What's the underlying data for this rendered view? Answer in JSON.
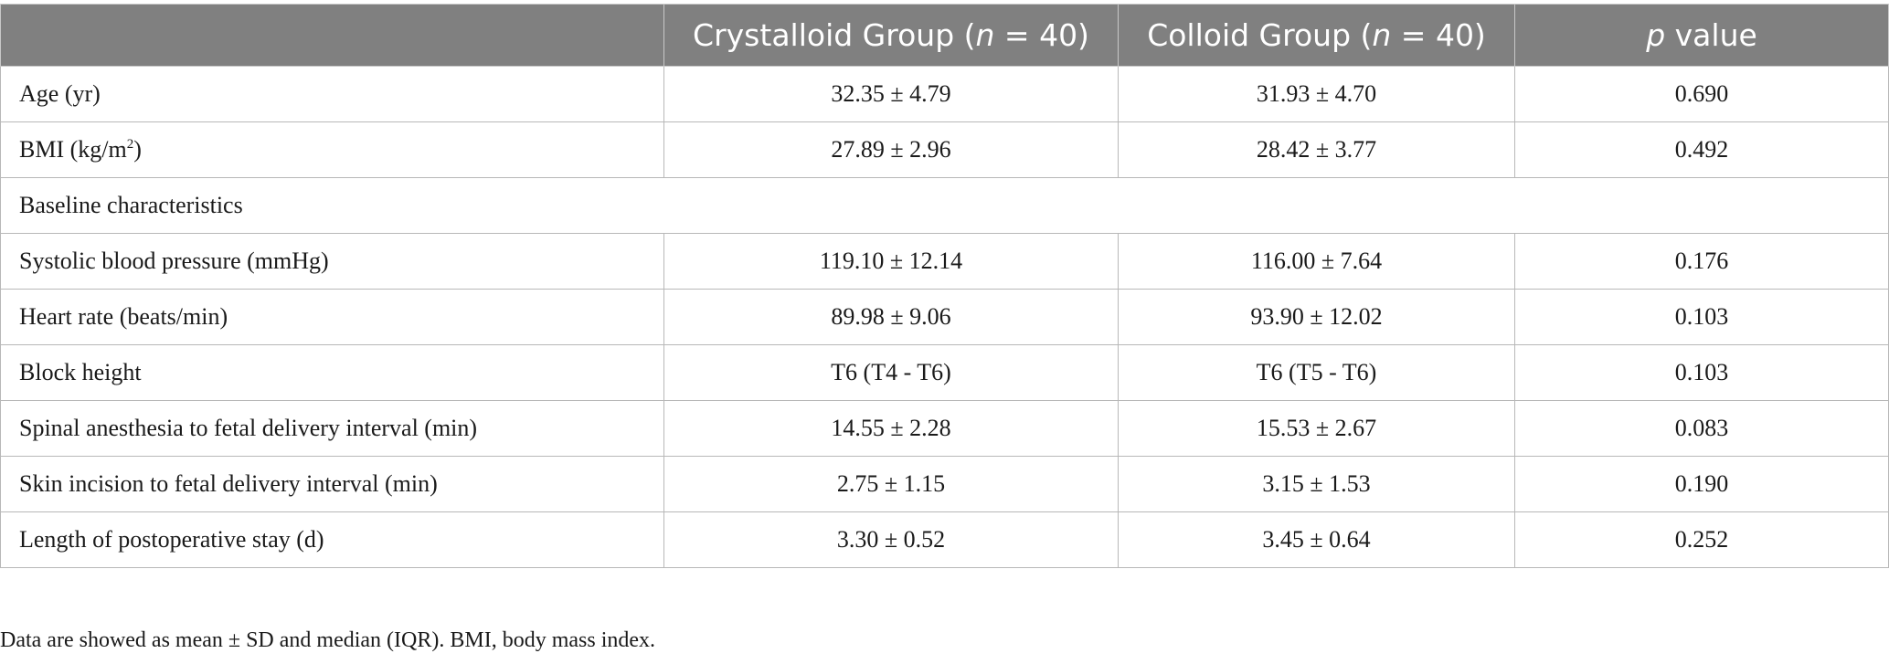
{
  "table": {
    "headers": {
      "blank": "",
      "crystalloid_prefix": "Crystalloid Group (",
      "crystalloid_n": "n",
      "crystalloid_suffix": " = 40)",
      "colloid_prefix": "Colloid Group (",
      "colloid_n": "n",
      "colloid_suffix": " = 40)",
      "p_italic": "p",
      "p_rest": " value"
    },
    "rows": [
      {
        "label": "Age (yr)",
        "crystalloid": "32.35 ± 4.79",
        "colloid": "31.93 ± 4.70",
        "p": "0.690"
      },
      {
        "label": "BMI (kg/m",
        "label_sup": "2",
        "label_end": ")",
        "crystalloid": "27.89 ± 2.96",
        "colloid": "28.42 ± 3.77",
        "p": "0.492"
      },
      {
        "section": "Baseline characteristics"
      },
      {
        "label": "Systolic blood pressure (mmHg)",
        "crystalloid": "119.10 ± 12.14",
        "colloid": "116.00 ± 7.64",
        "p": "0.176"
      },
      {
        "label": "Heart rate (beats/min)",
        "crystalloid": "89.98 ± 9.06",
        "colloid": "93.90 ± 12.02",
        "p": "0.103"
      },
      {
        "label": "Block height",
        "crystalloid": "T6 (T4 - T6)",
        "colloid": "T6 (T5 - T6)",
        "p": "0.103"
      },
      {
        "label": "Spinal anesthesia to fetal delivery interval (min)",
        "crystalloid": "14.55 ± 2.28",
        "colloid": "15.53 ± 2.67",
        "p": "0.083"
      },
      {
        "label": "Skin incision to fetal delivery interval (min)",
        "crystalloid": "2.75 ± 1.15",
        "colloid": "3.15 ± 1.53",
        "p": "0.190"
      },
      {
        "label": "Length of postoperative stay (d)",
        "crystalloid": "3.30 ± 0.52",
        "colloid": "3.45 ± 0.64",
        "p": "0.252"
      }
    ]
  },
  "footnote": "Data are showed as mean ± SD and median (IQR). BMI, body mass index.",
  "colors": {
    "header_bg": "#808080",
    "header_text": "#ffffff",
    "border": "#b8b8b8"
  }
}
